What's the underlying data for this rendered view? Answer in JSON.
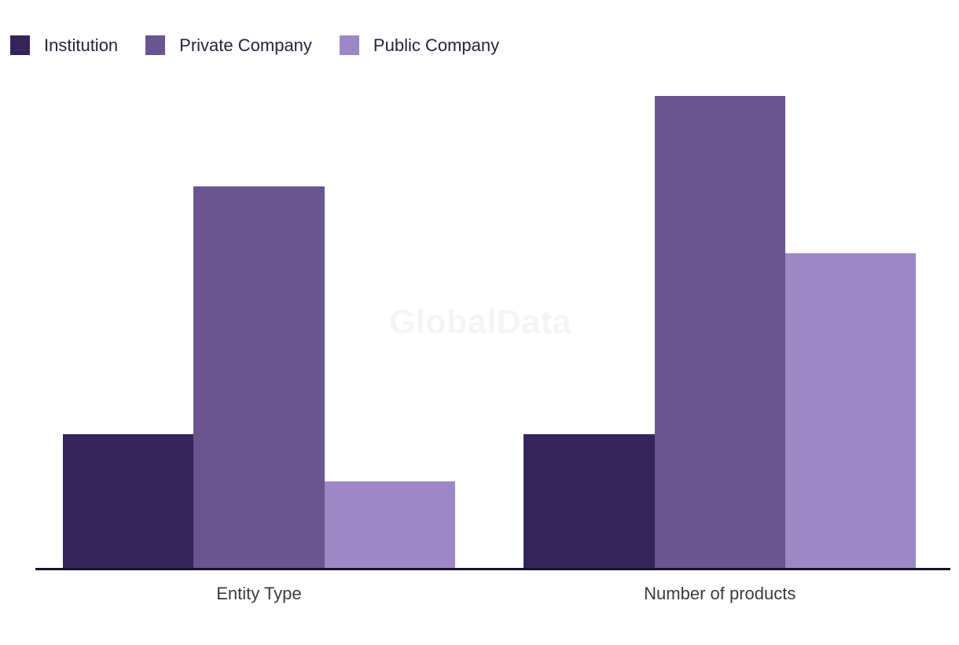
{
  "watermark": "GlobalData",
  "colors": {
    "background": "#FFFFFF",
    "axis_line": "#14142D",
    "legend_text": "#24243E",
    "category_label_text": "#3B3B3B",
    "watermark_text": "#F4F4F4",
    "series_institution": "#35245A",
    "series_private_company": "#6A5591",
    "series_public_company": "#9D87C5"
  },
  "chart_data": {
    "type": "bar",
    "title": "",
    "xlabel": "",
    "ylabel": "",
    "categories": [
      "Entity Type",
      "Number of products"
    ],
    "series": [
      {
        "name": "Institution",
        "color": "#35245A",
        "values": [
          17,
          17
        ]
      },
      {
        "name": "Private Company",
        "color": "#6A5591",
        "values": [
          48.5,
          60
        ]
      },
      {
        "name": "Public Company",
        "color": "#9D87C5",
        "values": [
          11,
          40
        ]
      }
    ],
    "ylim": [
      0,
      60
    ],
    "grid": false,
    "y_axis_shown": false,
    "legend_position": "top-left",
    "watermark": "GlobalData"
  }
}
